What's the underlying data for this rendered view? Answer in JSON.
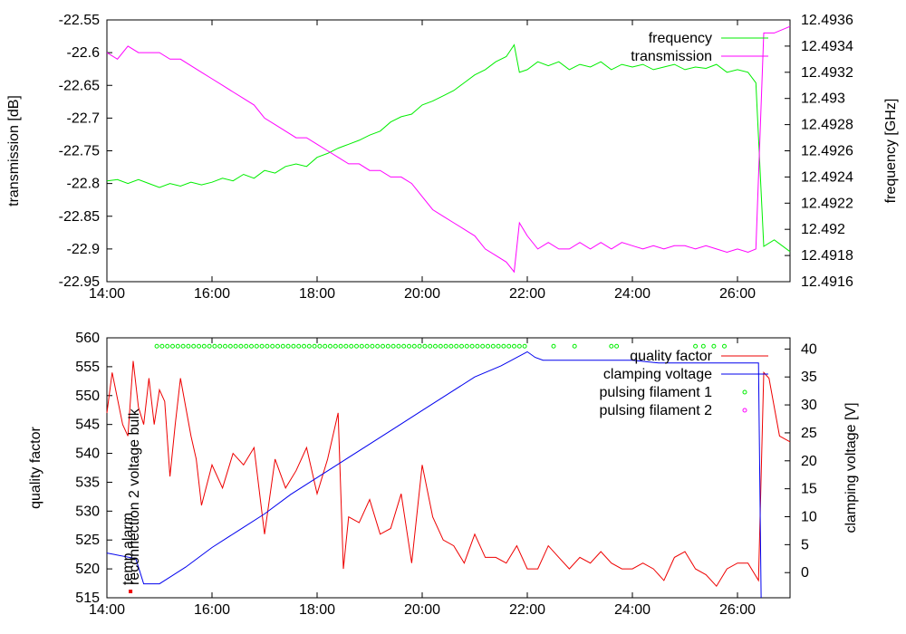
{
  "colors": {
    "frequency": "#00ee00",
    "transmission": "#ff00ff",
    "quality_factor": "#ee0000",
    "clamping_voltage": "#0000ee",
    "pulsing_filament_1": "#00ee00",
    "pulsing_filament_2": "#ff00ff"
  },
  "chart_data": [
    {
      "type": "line",
      "ylabel": "transmission [dB]",
      "y2label": "frequency [GHz]",
      "xlim": [
        14,
        27
      ],
      "ylim": [
        -22.95,
        -22.55
      ],
      "y2lim": [
        12.4916,
        12.4936
      ],
      "x_tick_labels": [
        "14:00",
        "16:00",
        "18:00",
        "20:00",
        "22:00",
        "24:00",
        "26:00"
      ],
      "y_tick_labels": [
        "-22.55",
        "-22.6",
        "-22.65",
        "-22.7",
        "-22.75",
        "-22.8",
        "-22.85",
        "-22.9",
        "-22.95"
      ],
      "y2_tick_labels": [
        "12.4936",
        "12.4934",
        "12.4932",
        "12.493",
        "12.4928",
        "12.4926",
        "12.4924",
        "12.4922",
        "12.492",
        "12.4918",
        "12.4916"
      ],
      "legend_position": "top-right",
      "series": [
        {
          "name": "frequency",
          "axis": "y2",
          "x": [
            14.0,
            14.2,
            14.4,
            14.6,
            14.8,
            15.0,
            15.2,
            15.4,
            15.6,
            15.8,
            16.0,
            16.2,
            16.4,
            16.6,
            16.8,
            17.0,
            17.2,
            17.4,
            17.6,
            17.8,
            18.0,
            18.2,
            18.4,
            18.6,
            18.8,
            19.0,
            19.2,
            19.4,
            19.6,
            19.8,
            20.0,
            20.2,
            20.4,
            20.6,
            20.8,
            21.0,
            21.2,
            21.4,
            21.6,
            21.75,
            21.85,
            22.0,
            22.2,
            22.4,
            22.6,
            22.8,
            23.0,
            23.2,
            23.4,
            23.6,
            23.8,
            24.0,
            24.2,
            24.4,
            24.6,
            24.8,
            25.0,
            25.2,
            25.4,
            25.6,
            25.8,
            26.0,
            26.2,
            26.35,
            26.5,
            26.7,
            27.0
          ],
          "y": [
            12.49237,
            12.49238,
            12.49235,
            12.49238,
            12.49235,
            12.49232,
            12.49235,
            12.49233,
            12.49236,
            12.49234,
            12.49236,
            12.49239,
            12.49237,
            12.49242,
            12.49239,
            12.49245,
            12.49243,
            12.49248,
            12.4925,
            12.49248,
            12.49255,
            12.49258,
            12.49262,
            12.49265,
            12.49268,
            12.49272,
            12.49275,
            12.49282,
            12.49286,
            12.49288,
            12.49295,
            12.49298,
            12.49302,
            12.49306,
            12.49312,
            12.49318,
            12.49322,
            12.49328,
            12.49332,
            12.49341,
            12.4932,
            12.49322,
            12.49328,
            12.49325,
            12.49328,
            12.49322,
            12.49326,
            12.49324,
            12.49328,
            12.49322,
            12.49326,
            12.49324,
            12.49326,
            12.49322,
            12.49324,
            12.49326,
            12.49322,
            12.49324,
            12.49323,
            12.49326,
            12.4932,
            12.49322,
            12.4932,
            12.49312,
            12.49187,
            12.49192,
            12.49183
          ]
        },
        {
          "name": "transmission",
          "axis": "y1",
          "x": [
            14.0,
            14.2,
            14.4,
            14.6,
            14.8,
            15.0,
            15.2,
            15.4,
            15.6,
            15.8,
            16.0,
            16.2,
            16.4,
            16.6,
            16.8,
            17.0,
            17.2,
            17.4,
            17.6,
            17.8,
            18.0,
            18.2,
            18.4,
            18.6,
            18.8,
            19.0,
            19.2,
            19.4,
            19.6,
            19.8,
            20.0,
            20.2,
            20.4,
            20.6,
            20.8,
            21.0,
            21.2,
            21.4,
            21.6,
            21.75,
            21.85,
            22.0,
            22.2,
            22.4,
            22.6,
            22.8,
            23.0,
            23.2,
            23.4,
            23.6,
            23.8,
            24.0,
            24.2,
            24.4,
            24.6,
            24.8,
            25.0,
            25.2,
            25.4,
            25.6,
            25.8,
            26.0,
            26.2,
            26.35,
            26.5,
            26.7,
            27.0
          ],
          "y": [
            -22.6,
            -22.61,
            -22.59,
            -22.6,
            -22.6,
            -22.6,
            -22.61,
            -22.61,
            -22.62,
            -22.63,
            -22.64,
            -22.65,
            -22.66,
            -22.67,
            -22.68,
            -22.7,
            -22.71,
            -22.72,
            -22.73,
            -22.73,
            -22.74,
            -22.75,
            -22.76,
            -22.77,
            -22.77,
            -22.78,
            -22.78,
            -22.79,
            -22.79,
            -22.8,
            -22.82,
            -22.84,
            -22.85,
            -22.86,
            -22.87,
            -22.88,
            -22.9,
            -22.91,
            -22.92,
            -22.935,
            -22.86,
            -22.88,
            -22.9,
            -22.89,
            -22.9,
            -22.9,
            -22.89,
            -22.9,
            -22.89,
            -22.9,
            -22.89,
            -22.895,
            -22.9,
            -22.895,
            -22.9,
            -22.895,
            -22.895,
            -22.9,
            -22.895,
            -22.9,
            -22.905,
            -22.9,
            -22.905,
            -22.9,
            -22.57,
            -22.57,
            -22.56
          ]
        }
      ]
    },
    {
      "type": "line",
      "ylabel": "quality factor",
      "y2label": "clamping voltage [V]",
      "xlim": [
        14,
        27
      ],
      "ylim": [
        515,
        560
      ],
      "y2lim": [
        -4.5,
        42
      ],
      "x_tick_labels": [
        "14:00",
        "16:00",
        "18:00",
        "20:00",
        "22:00",
        "24:00",
        "26:00"
      ],
      "y_tick_labels": [
        "560",
        "555",
        "550",
        "545",
        "540",
        "535",
        "530",
        "525",
        "520",
        "515"
      ],
      "y2_tick_labels": [
        "40",
        "35",
        "30",
        "25",
        "20",
        "15",
        "10",
        "5",
        "0"
      ],
      "legend_position": "top-right",
      "annotations": [
        "temp alarm",
        "reconnection 2 voltage bulk"
      ],
      "series": [
        {
          "name": "quality factor",
          "axis": "y1",
          "x": [
            14.0,
            14.1,
            14.3,
            14.4,
            14.5,
            14.6,
            14.7,
            14.8,
            14.9,
            15.0,
            15.1,
            15.2,
            15.3,
            15.4,
            15.5,
            15.6,
            15.7,
            15.8,
            16.0,
            16.2,
            16.4,
            16.6,
            16.8,
            17.0,
            17.2,
            17.4,
            17.6,
            17.8,
            18.0,
            18.2,
            18.4,
            18.5,
            18.6,
            18.8,
            19.0,
            19.2,
            19.4,
            19.6,
            19.8,
            20.0,
            20.2,
            20.4,
            20.6,
            20.8,
            21.0,
            21.2,
            21.4,
            21.6,
            21.8,
            22.0,
            22.2,
            22.4,
            22.6,
            22.8,
            23.0,
            23.2,
            23.4,
            23.6,
            23.8,
            24.0,
            24.2,
            24.4,
            24.6,
            24.8,
            25.0,
            25.2,
            25.4,
            25.6,
            25.8,
            26.0,
            26.2,
            26.4,
            26.5,
            26.6,
            26.8,
            27.0
          ],
          "y": [
            547,
            554,
            545,
            543,
            556,
            548,
            545,
            553,
            545,
            551,
            549,
            536,
            545,
            553,
            548,
            543,
            539,
            531,
            538,
            534,
            540,
            538,
            541,
            526,
            539,
            534,
            537,
            541,
            533,
            539,
            547,
            520,
            529,
            528,
            532,
            526,
            527,
            533,
            521,
            538,
            529,
            525,
            524,
            521,
            526,
            522,
            522,
            521,
            524,
            520,
            520,
            524,
            522,
            520,
            522,
            521,
            523,
            521,
            520,
            520,
            521,
            520,
            518,
            522,
            523,
            520,
            519,
            517,
            520,
            521,
            521,
            518,
            554,
            553,
            543,
            542
          ]
        },
        {
          "name": "clamping voltage",
          "axis": "y2",
          "x": [
            14.0,
            14.55,
            14.7,
            15.0,
            15.5,
            16.0,
            16.5,
            17.0,
            17.5,
            18.0,
            18.5,
            19.0,
            19.5,
            20.0,
            20.5,
            21.0,
            21.5,
            22.0,
            22.15,
            22.3,
            22.5,
            23.0,
            23.5,
            24.0,
            24.5,
            25.0,
            25.5,
            26.0,
            26.3,
            26.4,
            26.45
          ],
          "y": [
            3.5,
            2.5,
            -2,
            -2,
            1,
            4.5,
            7.5,
            10.5,
            14,
            17,
            20,
            23,
            26,
            29,
            32,
            35,
            37,
            39.5,
            38.5,
            38,
            38,
            38,
            38,
            38,
            37.5,
            37.5,
            37.5,
            37.5,
            37.5,
            37.5,
            -4.5
          ]
        },
        {
          "name": "pulsing filament 1",
          "axis": "y2",
          "kind": "points",
          "x": [
            14.95,
            15.05,
            15.15,
            15.25,
            15.35,
            15.45,
            15.55,
            15.65,
            15.75,
            15.85,
            15.95,
            16.05,
            16.15,
            16.25,
            16.35,
            16.45,
            16.55,
            16.65,
            16.75,
            16.85,
            16.95,
            17.05,
            17.15,
            17.25,
            17.35,
            17.45,
            17.55,
            17.65,
            17.75,
            17.85,
            17.95,
            18.05,
            18.15,
            18.25,
            18.35,
            18.45,
            18.55,
            18.65,
            18.75,
            18.85,
            18.95,
            19.05,
            19.15,
            19.25,
            19.35,
            19.45,
            19.55,
            19.65,
            19.75,
            19.85,
            19.95,
            20.05,
            20.15,
            20.25,
            20.35,
            20.45,
            20.55,
            20.65,
            20.75,
            20.85,
            20.95,
            21.05,
            21.15,
            21.25,
            21.35,
            21.45,
            21.55,
            21.65,
            21.75,
            21.85,
            21.95,
            22.5,
            22.9,
            23.6,
            23.7,
            25.2,
            25.35,
            25.55,
            25.75
          ],
          "y": [
            40.5,
            40.5,
            40.5,
            40.5,
            40.5,
            40.5,
            40.5,
            40.5,
            40.5,
            40.5,
            40.5,
            40.5,
            40.5,
            40.5,
            40.5,
            40.5,
            40.5,
            40.5,
            40.5,
            40.5,
            40.5,
            40.5,
            40.5,
            40.5,
            40.5,
            40.5,
            40.5,
            40.5,
            40.5,
            40.5,
            40.5,
            40.5,
            40.5,
            40.5,
            40.5,
            40.5,
            40.5,
            40.5,
            40.5,
            40.5,
            40.5,
            40.5,
            40.5,
            40.5,
            40.5,
            40.5,
            40.5,
            40.5,
            40.5,
            40.5,
            40.5,
            40.5,
            40.5,
            40.5,
            40.5,
            40.5,
            40.5,
            40.5,
            40.5,
            40.5,
            40.5,
            40.5,
            40.5,
            40.5,
            40.5,
            40.5,
            40.5,
            40.5,
            40.5,
            40.5,
            40.5,
            40.5,
            40.5,
            40.5,
            40.5,
            40.5,
            40.5,
            40.5,
            40.5
          ]
        },
        {
          "name": "pulsing filament 2",
          "axis": "y2",
          "kind": "points",
          "x": [],
          "y": []
        }
      ]
    }
  ]
}
